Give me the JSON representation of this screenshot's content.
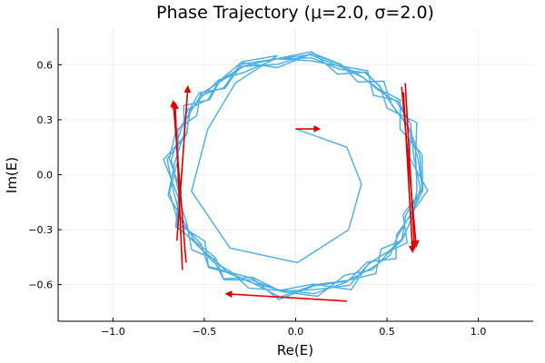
{
  "chart_data": {
    "type": "line",
    "title": "Phase Trajectory (μ=2.0, σ=2.0)",
    "xlabel": "Re(E)",
    "ylabel": "Im(E)",
    "xlim": [
      -1.3,
      1.3
    ],
    "ylim": [
      -0.8,
      0.8
    ],
    "grid": true,
    "legend": "none",
    "x_ticks": [
      {
        "value": -1.0,
        "label": "−1.0"
      },
      {
        "value": -0.5,
        "label": "−0.5"
      },
      {
        "value": 0.0,
        "label": "0.0"
      },
      {
        "value": 0.5,
        "label": "0.5"
      },
      {
        "value": 1.0,
        "label": "1.0"
      }
    ],
    "y_ticks": [
      {
        "value": 0.6,
        "label": "0.6"
      },
      {
        "value": 0.3,
        "label": "0.3"
      },
      {
        "value": 0.0,
        "label": "0.0"
      },
      {
        "value": -0.3,
        "label": "−0.3"
      },
      {
        "value": -0.6,
        "label": "−0.6"
      }
    ],
    "colors": {
      "trajectory": "#4aaee7",
      "arrows": "#e00000"
    },
    "trajectory": {
      "start": [
        0.0,
        0.25
      ],
      "transient": [
        [
          0.0,
          0.25
        ],
        [
          0.28,
          0.15
        ],
        [
          0.36,
          -0.05
        ],
        [
          0.29,
          -0.3
        ],
        [
          0.01,
          -0.48
        ],
        [
          -0.36,
          -0.4
        ],
        [
          -0.57,
          -0.09
        ],
        [
          -0.48,
          0.25
        ],
        [
          -0.33,
          0.5
        ],
        [
          -0.1,
          0.65
        ]
      ],
      "orbit": {
        "center": [
          0.0,
          0.0
        ],
        "r_x": 0.68,
        "r_y": 0.64,
        "ripple": 0.08,
        "loops": 6,
        "steps_per_loop": 28
      }
    },
    "arrows": [
      {
        "from": [
          0.0,
          0.25
        ],
        "to": [
          0.13,
          0.25
        ]
      },
      {
        "from": [
          -0.6,
          -0.48
        ],
        "to": [
          -0.67,
          0.4
        ]
      },
      {
        "from": [
          -0.62,
          -0.52
        ],
        "to": [
          -0.66,
          0.39
        ]
      },
      {
        "from": [
          -0.65,
          -0.36
        ],
        "to": [
          -0.59,
          0.48
        ]
      },
      {
        "from": [
          0.6,
          0.5
        ],
        "to": [
          0.65,
          -0.4
        ]
      },
      {
        "from": [
          0.58,
          0.48
        ],
        "to": [
          0.66,
          -0.39
        ]
      },
      {
        "from": [
          0.59,
          0.45
        ],
        "to": [
          0.64,
          -0.42
        ]
      },
      {
        "from": [
          0.28,
          -0.69
        ],
        "to": [
          -0.38,
          -0.65
        ]
      }
    ]
  }
}
